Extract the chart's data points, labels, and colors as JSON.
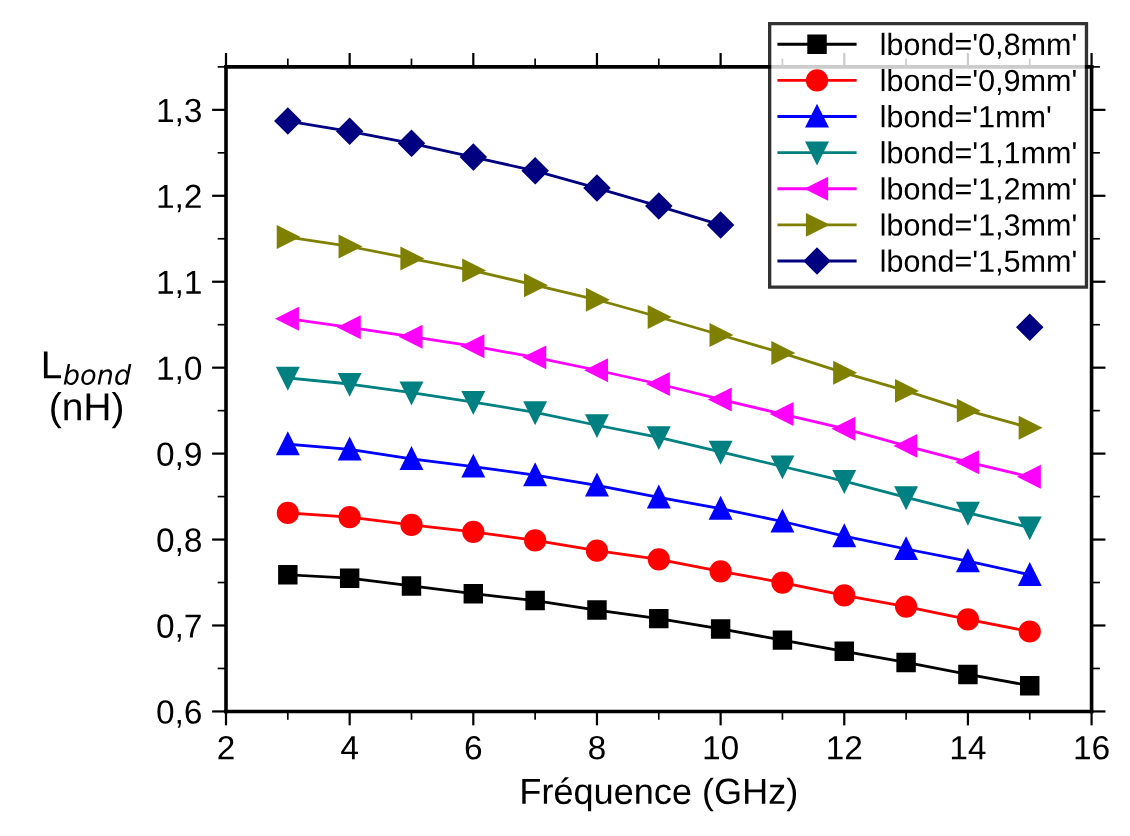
{
  "chart_data": {
    "type": "line",
    "xlabel": "Fréquence (GHz)",
    "ylabel": "L$_{bond}$\n(nH)",
    "x": [
      3,
      4,
      5,
      6,
      7,
      8,
      9,
      10,
      11,
      12,
      13,
      14,
      15
    ],
    "series": [
      {
        "name": "lbond='0,8mm'",
        "color": "#000000",
        "marker": "square",
        "values": [
          0.759,
          0.755,
          0.746,
          0.737,
          0.729,
          0.718,
          0.708,
          0.696,
          0.683,
          0.67,
          0.657,
          0.643,
          0.63
        ]
      },
      {
        "name": "lbond='0,9mm'",
        "color": "#ff0000",
        "marker": "circle",
        "values": [
          0.831,
          0.826,
          0.817,
          0.809,
          0.799,
          0.787,
          0.777,
          0.763,
          0.75,
          0.735,
          0.722,
          0.707,
          0.693
        ]
      },
      {
        "name": "lbond='1mm'",
        "color": "#0000ff",
        "marker": "triangle",
        "values": [
          0.911,
          0.905,
          0.894,
          0.885,
          0.875,
          0.863,
          0.849,
          0.836,
          0.821,
          0.804,
          0.789,
          0.775,
          0.759
        ]
      },
      {
        "name": "lbond='1,1mm'",
        "color": "#008080",
        "marker": "triangle_down",
        "values": [
          0.988,
          0.981,
          0.971,
          0.96,
          0.948,
          0.933,
          0.919,
          0.902,
          0.885,
          0.868,
          0.849,
          0.831,
          0.814
        ]
      },
      {
        "name": "lbond='1,2mm'",
        "color": "#ff00ff",
        "marker": "triangle_left",
        "values": [
          1.057,
          1.047,
          1.036,
          1.025,
          1.012,
          0.997,
          0.981,
          0.963,
          0.946,
          0.929,
          0.909,
          0.89,
          0.873
        ]
      },
      {
        "name": "lbond='1,3mm'",
        "color": "#808000",
        "marker": "triangle_right",
        "values": [
          1.152,
          1.141,
          1.127,
          1.113,
          1.096,
          1.079,
          1.059,
          1.038,
          1.017,
          0.994,
          0.973,
          0.95,
          0.93
        ]
      },
      {
        "name": "lbond='1,5mm'",
        "color": "#000080",
        "marker": "diamond",
        "values": [
          1.287,
          1.275,
          1.261,
          1.245,
          1.229,
          1.209,
          1.188,
          1.166,
          null,
          null,
          null,
          null,
          1.047
        ]
      }
    ],
    "xlim": [
      2,
      16
    ],
    "xticks": [
      2,
      4,
      6,
      8,
      10,
      12,
      14,
      16
    ],
    "ylim": [
      0.6,
      1.35
    ],
    "yticks": [
      {
        "value": 0.6,
        "label": "0,6"
      },
      {
        "value": 0.7,
        "label": "0,7"
      },
      {
        "value": 0.8,
        "label": "0,8"
      },
      {
        "value": 0.9,
        "label": "0,9"
      },
      {
        "value": 1.0,
        "label": "1,0"
      },
      {
        "value": 1.1,
        "label": "1,1"
      },
      {
        "value": 1.2,
        "label": "1,2"
      },
      {
        "value": 1.3,
        "label": "1,3"
      }
    ],
    "grid": false,
    "legend": "top right",
    "line_style": "solid"
  }
}
